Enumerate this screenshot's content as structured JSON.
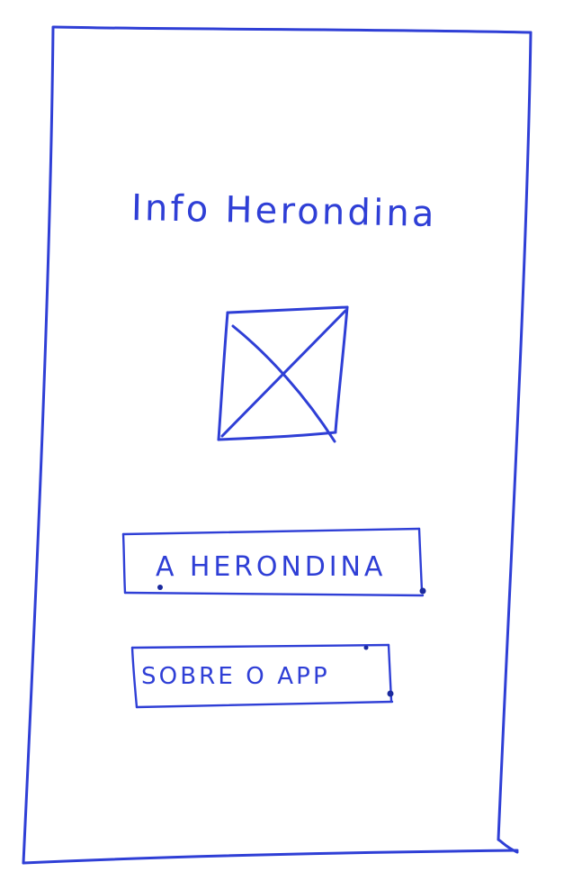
{
  "screen": {
    "title": "Info Herondina",
    "image_placeholder_icon": "image-placeholder-icon"
  },
  "buttons": {
    "herondina_label": "A HERONDINA",
    "about_app_label": "SOBRE O APP"
  },
  "colors": {
    "ink": "#2f3fd6",
    "paper": "#ffffff"
  }
}
